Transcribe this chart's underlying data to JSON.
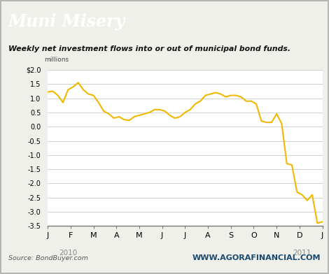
{
  "title": "Muni Misery",
  "subtitle": "Weekly net investment flows into or out of municipal bond funds.",
  "ylabel_top": "millions",
  "source_text": "Source: BondBuyer.com",
  "watermark": "WWW.AGORAFINANCIAL.COM",
  "title_bg_color": "#1a4970",
  "title_text_color": "#ffffff",
  "line_color": "#f0b800",
  "bg_color": "#f0f0eb",
  "plot_bg_color": "#ffffff",
  "grid_color": "#c8c8c8",
  "border_color": "#aaaaaa",
  "ylim": [
    -3.5,
    2.0
  ],
  "yticks": [
    -3.5,
    -3.0,
    -2.5,
    -2.0,
    -1.5,
    -1.0,
    -0.5,
    0.0,
    0.5,
    1.0,
    1.5,
    2.0
  ],
  "ytick_labels": [
    "-3.5",
    "-3.0",
    "-2.5",
    "-2.0",
    "-1.5",
    "-1.0",
    "-0.5",
    "0.0",
    "0.5",
    "1.0",
    "1.5",
    "$2.0"
  ],
  "x_month_labels": [
    "J",
    "F",
    "M",
    "A",
    "M",
    "J",
    "J",
    "A",
    "S",
    "O",
    "N",
    "D",
    "J"
  ],
  "values": [
    1.22,
    1.25,
    1.1,
    0.85,
    1.3,
    1.4,
    1.55,
    1.3,
    1.15,
    1.1,
    0.85,
    0.55,
    0.45,
    0.3,
    0.35,
    0.25,
    0.22,
    0.35,
    0.4,
    0.45,
    0.5,
    0.6,
    0.6,
    0.55,
    0.4,
    0.3,
    0.35,
    0.5,
    0.6,
    0.8,
    0.9,
    1.1,
    1.15,
    1.2,
    1.15,
    1.05,
    1.1,
    1.1,
    1.05,
    0.9,
    0.9,
    0.8,
    0.2,
    0.15,
    0.15,
    0.45,
    0.1,
    -1.3,
    -1.35,
    -2.3,
    -2.4,
    -2.6,
    -2.4,
    -3.4,
    -3.35
  ]
}
